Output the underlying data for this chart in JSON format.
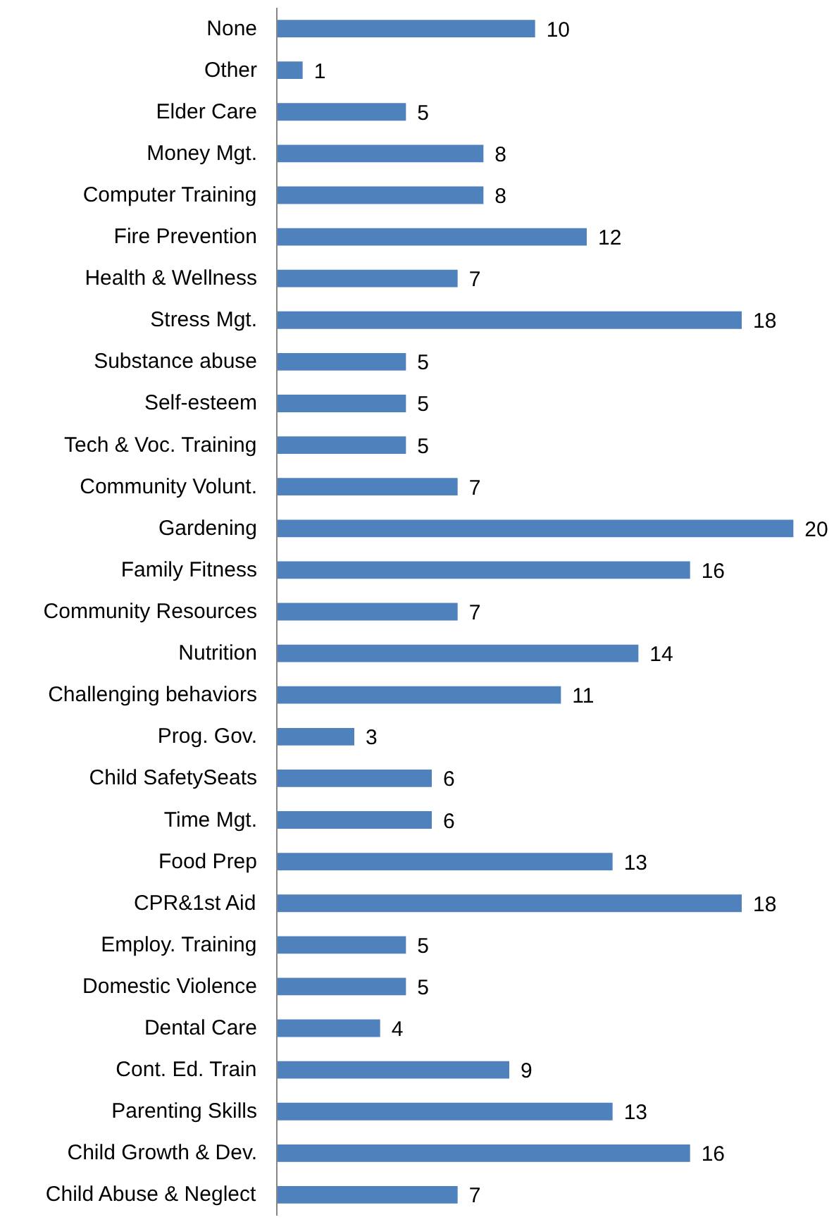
{
  "chart_data": {
    "type": "bar",
    "orientation": "horizontal",
    "data_labels": true,
    "grid": false,
    "tick_labels": "y",
    "color": "#4f81bd",
    "categories": [
      "None",
      "Other",
      "Elder Care",
      "Money Mgt.",
      "Computer Training",
      "Fire Prevention",
      "Health & Wellness",
      "Stress Mgt.",
      "Substance abuse",
      "Self-esteem",
      "Tech & Voc. Training",
      "Community Volunt.",
      "Gardening",
      "Family Fitness",
      "Community Resources",
      "Nutrition",
      "Challenging behaviors",
      "Prog. Gov.",
      "Child SafetySeats",
      "Time Mgt.",
      "Food Prep",
      "CPR&1st Aid",
      "Employ. Training",
      "Domestic Violence",
      "Dental Care",
      "Cont. Ed. Train",
      "Parenting Skills",
      "Child Growth & Dev.",
      "Child Abuse & Neglect"
    ],
    "values": [
      10,
      1,
      5,
      8,
      8,
      12,
      7,
      18,
      5,
      5,
      5,
      7,
      20,
      16,
      7,
      14,
      11,
      3,
      6,
      6,
      13,
      18,
      5,
      5,
      4,
      9,
      13,
      16,
      7
    ]
  }
}
